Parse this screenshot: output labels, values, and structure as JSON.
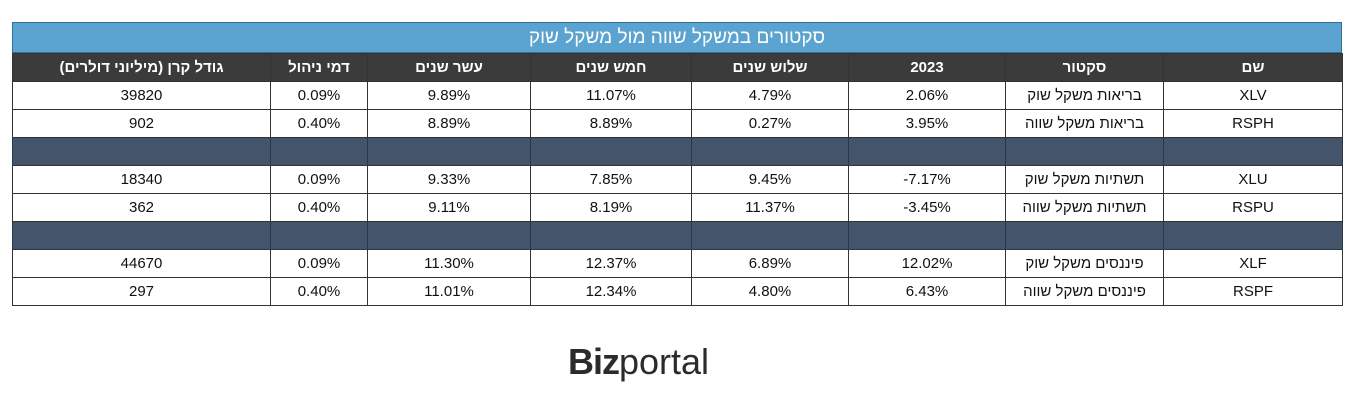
{
  "title": "סקטורים במשקל שווה מול משקל שוק",
  "headers": [
    "שם",
    "סקטור",
    "2023",
    "שלוש שנים",
    "חמש שנים",
    "עשר שנים",
    "דמי ניהול",
    "גודל קרן (מיליוני דולרים)"
  ],
  "rows": [
    {
      "type": "data",
      "cells": [
        "XLV",
        "בריאות משקל שוק",
        "2.06%",
        "4.79%",
        "11.07%",
        "9.89%",
        "0.09%",
        "39820"
      ]
    },
    {
      "type": "data",
      "cells": [
        "RSPH",
        "בריאות משקל שווה",
        "3.95%",
        "0.27%",
        "8.89%",
        "8.89%",
        "0.40%",
        "902"
      ]
    },
    {
      "type": "separator"
    },
    {
      "type": "data",
      "cells": [
        "XLU",
        "תשתיות משקל שוק",
        "-7.17%",
        "9.45%",
        "7.85%",
        "9.33%",
        "0.09%",
        "18340"
      ]
    },
    {
      "type": "data",
      "cells": [
        "RSPU",
        "תשתיות משקל שווה",
        "-3.45%",
        "11.37%",
        "8.19%",
        "9.11%",
        "0.40%",
        "362"
      ]
    },
    {
      "type": "separator"
    },
    {
      "type": "data",
      "cells": [
        "XLF",
        "פיננסים משקל שוק",
        "12.02%",
        "6.89%",
        "12.37%",
        "11.30%",
        "0.09%",
        "44670"
      ]
    },
    {
      "type": "data",
      "cells": [
        "RSPF",
        "פיננסים משקל שווה",
        "6.43%",
        "4.80%",
        "12.34%",
        "11.01%",
        "0.40%",
        "297"
      ]
    }
  ],
  "logo": {
    "bold": "Biz",
    "regular": "portal"
  }
}
